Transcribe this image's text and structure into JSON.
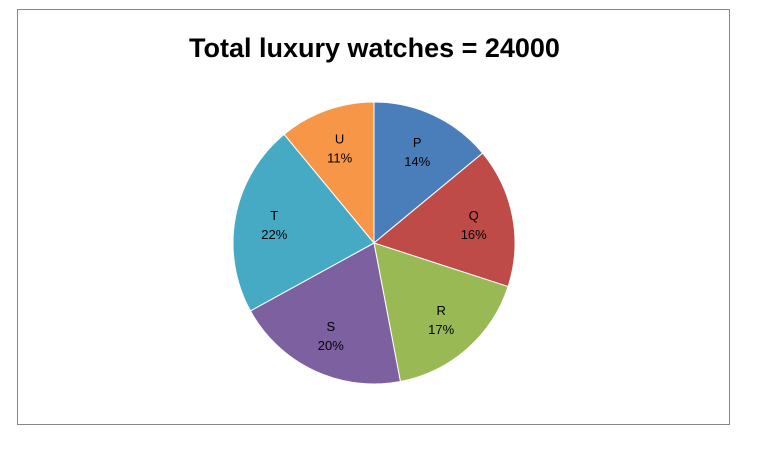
{
  "chart_data": {
    "type": "pie",
    "title": "Total luxury watches = 24000",
    "categories": [
      "P",
      "Q",
      "R",
      "S",
      "T",
      "U"
    ],
    "values": [
      14,
      16,
      17,
      20,
      22,
      11
    ],
    "value_labels": [
      "14%",
      "16%",
      "17%",
      "20%",
      "22%",
      "11%"
    ],
    "colors": [
      "#4A7EBB",
      "#BE4B48",
      "#98B954",
      "#7D60A0",
      "#46AAC5",
      "#F79646"
    ],
    "start_angle_deg": 0,
    "direction": "clockwise",
    "legend": "none",
    "labels_inside": true
  }
}
